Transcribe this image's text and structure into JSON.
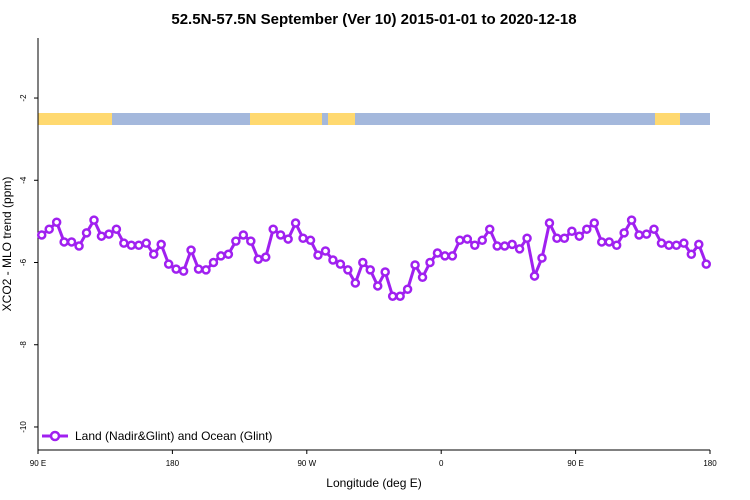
{
  "chart_data": {
    "type": "line",
    "title": "52.5N-57.5N September (Ver 10)   2015-01-01 to 2020-12-18",
    "x_label": "Longitude (deg E)",
    "y_label": "XCO2 - MLO trend (ppm)",
    "xlim": [
      90,
      540
    ],
    "xticks": [
      {
        "value": 90,
        "label": "90 E"
      },
      {
        "value": 180,
        "label": "180"
      },
      {
        "value": 270,
        "label": "90 W"
      },
      {
        "value": 360,
        "label": "0"
      },
      {
        "value": 450,
        "label": "90 E"
      },
      {
        "value": 540,
        "label": "180"
      }
    ],
    "ylim": [
      -10.56,
      -0.54
    ],
    "yticks": [
      -10,
      -8,
      -6,
      -4,
      -2
    ],
    "legend": "bottom-left",
    "x": [
      92.5,
      97.5,
      102.5,
      107.5,
      112.5,
      117.5,
      122.5,
      127.5,
      132.5,
      137.5,
      142.5,
      147.5,
      152.5,
      157.5,
      162.5,
      167.5,
      172.5,
      177.5,
      182.5,
      187.5,
      192.5,
      197.5,
      202.5,
      207.5,
      212.5,
      217.5,
      222.5,
      227.5,
      232.5,
      237.5,
      242.5,
      247.5,
      252.5,
      257.5,
      262.5,
      267.5,
      272.5,
      277.5,
      282.5,
      287.5,
      292.5,
      297.5,
      302.5,
      307.5,
      312.5,
      317.5,
      322.5,
      327.5,
      332.5,
      337.5,
      342.5,
      347.5,
      352.5,
      357.5,
      362.5,
      367.5,
      372.5,
      377.5,
      382.5,
      387.5,
      392.5,
      397.5,
      402.5,
      407.5,
      412.5,
      417.5,
      422.5,
      427.5,
      432.5,
      437.5,
      442.5,
      447.5,
      452.5,
      457.5,
      462.5,
      467.5,
      472.5,
      477.5,
      482.5,
      487.5,
      492.5,
      497.5,
      502.5,
      507.5,
      512.5,
      517.5,
      522.5,
      527.5,
      532.5,
      537.5
    ],
    "series": [
      {
        "name": "Land (Nadir&Glint) and Ocean (Glint)",
        "color": "#a020f0",
        "values": [
          -5.33,
          -5.19,
          -5.02,
          -5.5,
          -5.5,
          -5.6,
          -5.28,
          -4.97,
          -5.36,
          -5.31,
          -5.19,
          -5.53,
          -5.58,
          -5.58,
          -5.53,
          -5.8,
          -5.56,
          -6.04,
          -6.16,
          -6.21,
          -5.7,
          -6.16,
          -6.18,
          -6.0,
          -5.84,
          -5.8,
          -5.48,
          -5.33,
          -5.48,
          -5.92,
          -5.87,
          -5.19,
          -5.33,
          -5.43,
          -5.04,
          -5.41,
          -5.46,
          -5.82,
          -5.72,
          -5.94,
          -6.04,
          -6.18,
          -6.5,
          -6.0,
          -6.18,
          -6.57,
          -6.23,
          -6.82,
          -6.82,
          -6.65,
          -6.06,
          -6.36,
          -6.0,
          -5.77,
          -5.84,
          -5.84,
          -5.46,
          -5.43,
          -5.58,
          -5.46,
          -5.19,
          -5.6,
          -5.6,
          -5.56,
          -5.67,
          -5.41,
          -6.33,
          -5.89,
          -5.04,
          -5.41,
          -5.41,
          -5.24,
          -5.36,
          -5.19,
          -5.04,
          -5.5,
          -5.5,
          -5.58,
          -5.28,
          -4.97,
          -5.33,
          -5.31,
          -5.19,
          -5.53,
          -5.58,
          -5.58,
          -5.53,
          -5.8,
          -5.56,
          -6.04
        ]
      }
    ]
  }
}
